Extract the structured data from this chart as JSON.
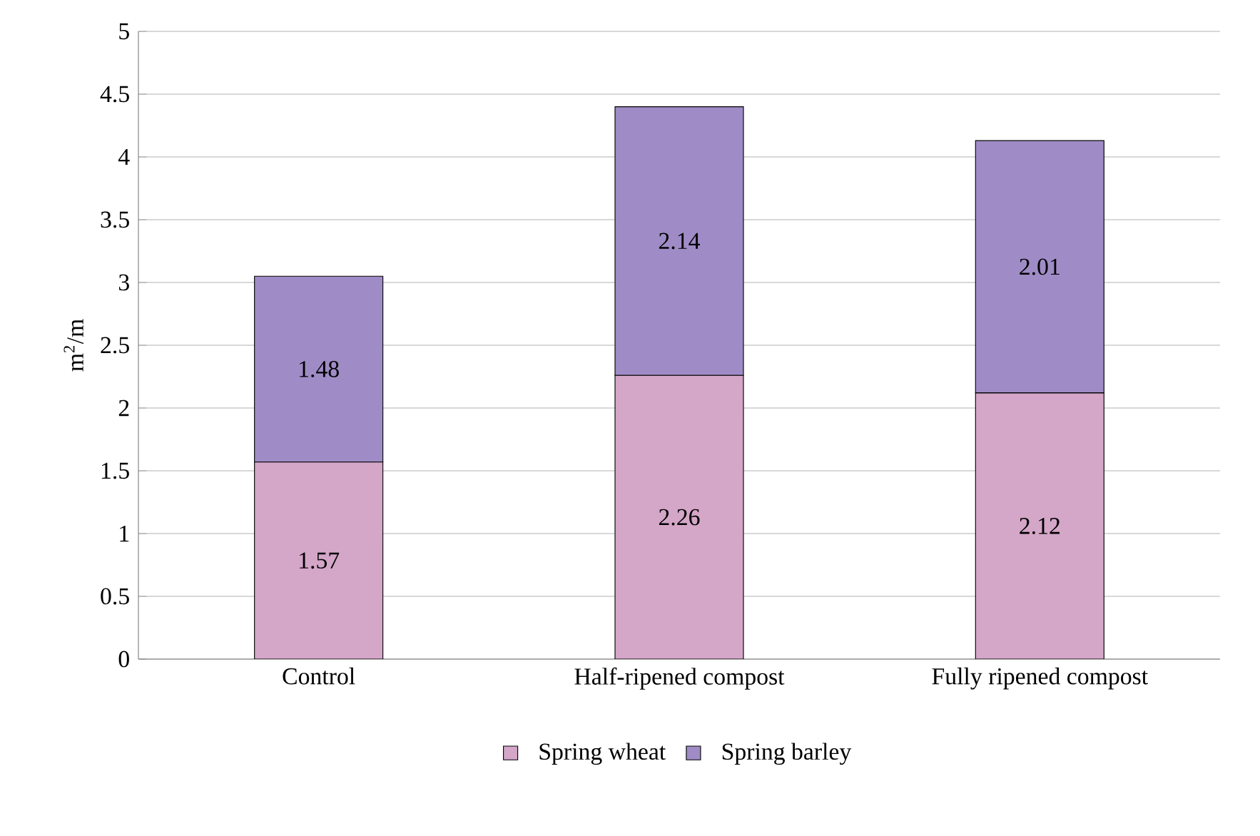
{
  "chart_data": {
    "type": "bar",
    "stacked": true,
    "ylabel": "m$^{2}$/m",
    "categories": [
      "Control",
      "Half-ripened compost",
      "Fully ripened compost"
    ],
    "series": [
      {
        "name": "Spring wheat",
        "color": "#d4a6c8",
        "values": [
          1.57,
          2.26,
          2.12
        ]
      },
      {
        "name": "Spring barley",
        "color": "#9f8cc6",
        "values": [
          1.48,
          2.14,
          2.01
        ]
      }
    ],
    "ylim": [
      0,
      5
    ],
    "yticks": [
      0,
      0.5,
      1,
      1.5,
      2,
      2.5,
      3,
      3.5,
      4,
      4.5,
      5
    ],
    "grid": "y",
    "legend": "bottom",
    "data_labels": true
  }
}
